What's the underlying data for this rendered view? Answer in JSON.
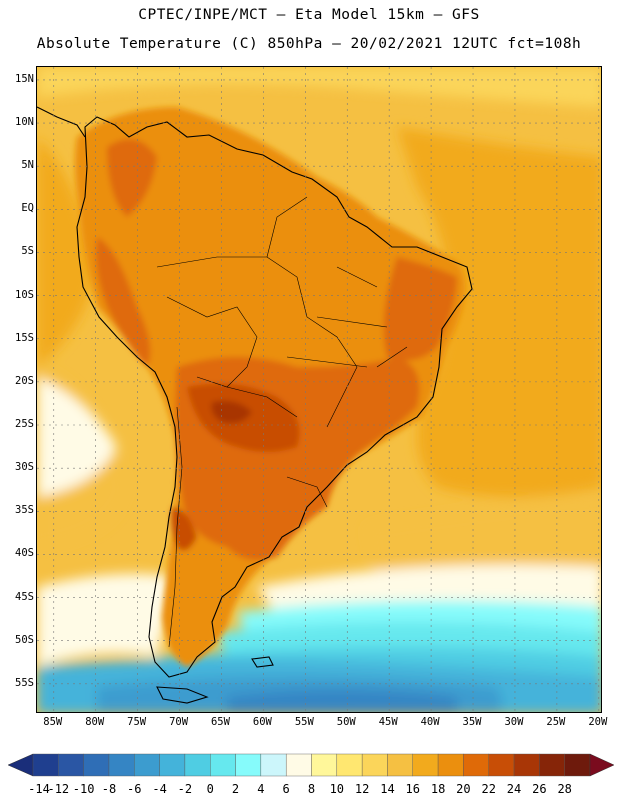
{
  "header": {
    "line1": "CPTEC/INPE/MCT –  Eta Model 15km – GFS",
    "line2": "Absolute Temperature (C) 850hPa – 20/02/2021 12UTC fct=108h"
  },
  "axes": {
    "lat_labels": [
      "15N",
      "10N",
      "5N",
      "EQ",
      "5S",
      "10S",
      "15S",
      "20S",
      "25S",
      "30S",
      "35S",
      "40S",
      "45S",
      "50S",
      "55S"
    ],
    "lon_labels": [
      "85W",
      "80W",
      "75W",
      "70W",
      "65W",
      "60W",
      "55W",
      "50W",
      "45W",
      "40W",
      "35W",
      "30W",
      "25W",
      "20W"
    ]
  },
  "colorbar": {
    "ticks": [
      "-14",
      "-12",
      "-10",
      "-8",
      "-6",
      "-4",
      "-2",
      "0",
      "2",
      "4",
      "6",
      "8",
      "10",
      "12",
      "14",
      "16",
      "18",
      "20",
      "22",
      "24",
      "26",
      "28"
    ],
    "colors": [
      "#1f3f8f",
      "#2a56a4",
      "#2f6eb6",
      "#3585c4",
      "#3c9ccf",
      "#44b3da",
      "#4fcde3",
      "#66e8ee",
      "#86fbfb",
      "#ccf6fb",
      "#fffbe6",
      "#fff79a",
      "#ffe770",
      "#fbd55a",
      "#f5c042",
      "#f2aa1d",
      "#eb8f0e",
      "#df6a08",
      "#c84e06",
      "#a83606",
      "#862508",
      "#6e1a0c"
    ],
    "under_color": "#1a2e7a",
    "over_color": "#7a0b1e"
  },
  "map_colors": {
    "ocean_warm": "#f2aa1d",
    "ocean_mid": "#f5c042",
    "ocean_cool": "#fbd55a",
    "land_warm": "#eb8f0e",
    "land_hot": "#df6a08",
    "land_hotter": "#c84e06",
    "land_hottest": "#a83606",
    "pale": "#fffbe6",
    "cyan_light": "#86fbfb",
    "cyan": "#66e8ee",
    "cyan_mid": "#4fcde3",
    "blue_light": "#44b3da",
    "blue": "#3c9ccf",
    "blue_dark": "#3585c4"
  }
}
